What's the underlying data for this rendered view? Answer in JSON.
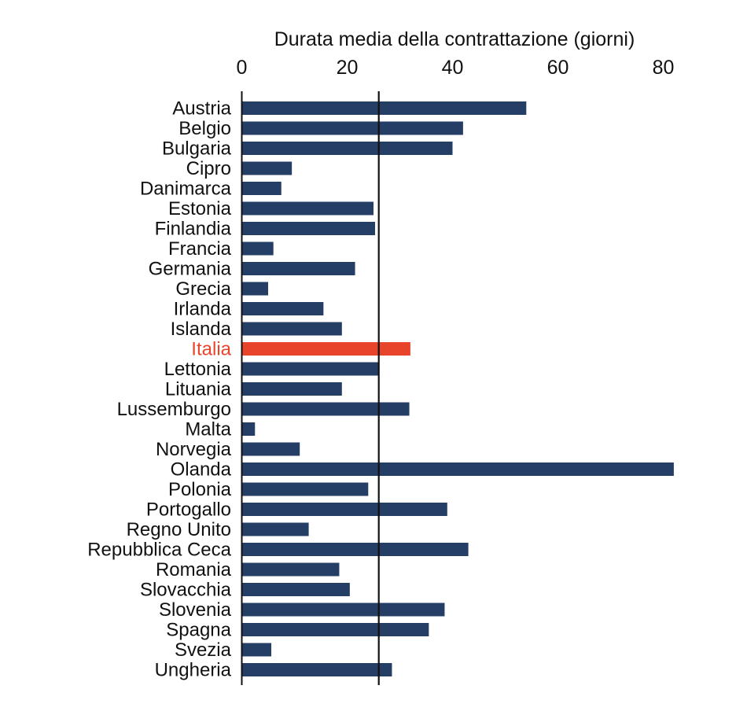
{
  "chart_data": {
    "type": "bar",
    "orientation": "horizontal",
    "title": "",
    "xlabel": "Durata media della contrattazione (giorni)",
    "ylabel": "",
    "xaxis_position": "top",
    "xlim": [
      0,
      82
    ],
    "xticks": [
      0,
      20,
      40,
      60,
      80
    ],
    "reference_line": 26,
    "grid": false,
    "legend": "none",
    "bar_color": "#253e66",
    "highlight_color": "#e8442c",
    "highlight_category": "Italia",
    "categories": [
      "Austria",
      "Belgio",
      "Bulgaria",
      "Cipro",
      "Danimarca",
      "Estonia",
      "Finlandia",
      "Francia",
      "Germania",
      "Grecia",
      "Irlanda",
      "Islanda",
      "Italia",
      "Lettonia",
      "Lituania",
      "Lussemburgo",
      "Malta",
      "Norvegia",
      "Olanda",
      "Polonia",
      "Portogallo",
      "Regno Unito",
      "Repubblica Ceca",
      "Romania",
      "Slovacchia",
      "Slovenia",
      "Spagna",
      "Svezia",
      "Ungheria"
    ],
    "values": [
      54,
      42,
      40,
      9.5,
      7.5,
      25,
      25.3,
      6,
      21.5,
      5,
      15.5,
      19,
      32,
      26,
      19,
      31.8,
      2.5,
      11,
      82,
      24,
      39,
      12.7,
      43,
      18.5,
      20.5,
      38.5,
      35.5,
      5.6,
      28.5
    ]
  }
}
